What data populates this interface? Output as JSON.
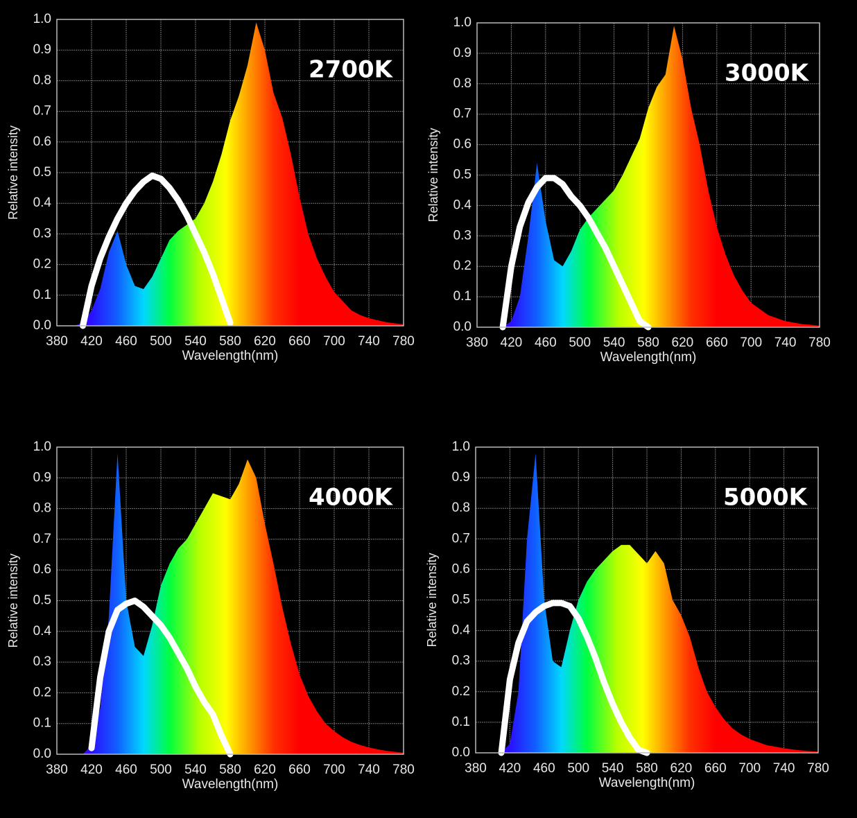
{
  "chart_data": [
    {
      "type": "area",
      "title": "2700K",
      "xlabel": "Wavelength(nm)",
      "ylabel": "Relative intensity",
      "x": [
        380,
        390,
        400,
        410,
        420,
        430,
        440,
        450,
        460,
        470,
        480,
        490,
        500,
        510,
        520,
        530,
        540,
        550,
        560,
        570,
        580,
        590,
        600,
        610,
        620,
        630,
        640,
        650,
        660,
        670,
        680,
        690,
        700,
        710,
        720,
        730,
        740,
        750,
        760,
        770,
        780
      ],
      "series": [
        {
          "fill": "spectrum",
          "values": [
            0,
            0,
            0,
            0.01,
            0.05,
            0.12,
            0.24,
            0.31,
            0.2,
            0.13,
            0.12,
            0.16,
            0.22,
            0.28,
            0.31,
            0.33,
            0.35,
            0.4,
            0.47,
            0.56,
            0.67,
            0.75,
            0.85,
            0.99,
            0.9,
            0.76,
            0.68,
            0.56,
            0.42,
            0.3,
            0.22,
            0.16,
            0.11,
            0.08,
            0.05,
            0.035,
            0.025,
            0.018,
            0.012,
            0.008,
            0.005
          ]
        },
        {
          "color": "#ffffff",
          "values": [
            null,
            null,
            null,
            0,
            0.13,
            0.22,
            0.29,
            0.35,
            0.4,
            0.44,
            0.47,
            0.49,
            0.48,
            0.45,
            0.41,
            0.36,
            0.3,
            0.24,
            0.17,
            0.09,
            0.01,
            null,
            null,
            null,
            null,
            null,
            null,
            null,
            null,
            null,
            null,
            null,
            null,
            null,
            null,
            null,
            null,
            null,
            null,
            null,
            null
          ]
        }
      ],
      "xlim": [
        380,
        780
      ],
      "xticks": [
        380,
        420,
        460,
        500,
        540,
        580,
        620,
        660,
        700,
        740,
        780
      ],
      "ylim": [
        0,
        1
      ],
      "yticks": [
        {
          "value": 0,
          "label": "0.0"
        },
        0.1,
        0.2,
        0.3,
        0.4,
        0.5,
        0.6,
        0.7,
        0.8,
        0.9,
        {
          "value": 1,
          "label": "1.0"
        }
      ],
      "grid": true
    },
    {
      "type": "area",
      "title": "3000K",
      "xlabel": "Wavelength(nm)",
      "ylabel": "Relative intensity",
      "x": [
        380,
        390,
        400,
        410,
        420,
        430,
        440,
        450,
        460,
        470,
        480,
        490,
        500,
        510,
        520,
        530,
        540,
        550,
        560,
        570,
        580,
        590,
        600,
        610,
        620,
        630,
        640,
        650,
        660,
        670,
        680,
        690,
        700,
        710,
        720,
        730,
        740,
        750,
        760,
        770,
        780
      ],
      "series": [
        {
          "fill": "spectrum",
          "values": [
            0,
            0,
            0,
            0,
            0.02,
            0.1,
            0.3,
            0.54,
            0.35,
            0.22,
            0.2,
            0.25,
            0.32,
            0.36,
            0.39,
            0.42,
            0.45,
            0.5,
            0.56,
            0.62,
            0.72,
            0.79,
            0.83,
            0.99,
            0.88,
            0.72,
            0.6,
            0.45,
            0.33,
            0.24,
            0.17,
            0.12,
            0.08,
            0.06,
            0.04,
            0.03,
            0.02,
            0.015,
            0.01,
            0.008,
            0.005
          ]
        },
        {
          "color": "#ffffff",
          "values": [
            null,
            null,
            null,
            0,
            0.2,
            0.33,
            0.41,
            0.46,
            0.49,
            0.49,
            0.47,
            0.43,
            0.4,
            0.36,
            0.31,
            0.26,
            0.2,
            0.14,
            0.08,
            0.02,
            0,
            null,
            null,
            null,
            null,
            null,
            null,
            null,
            null,
            null,
            null,
            null,
            null,
            null,
            null,
            null,
            null,
            null,
            null,
            null,
            null
          ]
        }
      ],
      "xlim": [
        380,
        780
      ],
      "xticks": [
        380,
        420,
        460,
        500,
        540,
        580,
        620,
        660,
        700,
        740,
        780
      ],
      "ylim": [
        0,
        1
      ],
      "yticks": [
        {
          "value": 0,
          "label": "0.0"
        },
        0.1,
        0.2,
        0.3,
        0.4,
        0.5,
        0.6,
        0.7,
        0.8,
        0.9,
        {
          "value": 1,
          "label": "1.0"
        }
      ],
      "grid": true
    },
    {
      "type": "area",
      "title": "4000K",
      "xlabel": "Wavelength(nm)",
      "ylabel": "Relative intensity",
      "x": [
        380,
        390,
        400,
        410,
        420,
        430,
        440,
        450,
        460,
        470,
        480,
        490,
        500,
        510,
        520,
        530,
        540,
        550,
        560,
        570,
        580,
        590,
        600,
        610,
        620,
        630,
        640,
        650,
        660,
        670,
        680,
        690,
        700,
        710,
        720,
        730,
        740,
        750,
        760,
        770,
        780
      ],
      "series": [
        {
          "fill": "spectrum",
          "values": [
            0,
            0,
            0,
            0,
            0.03,
            0.15,
            0.45,
            0.98,
            0.5,
            0.35,
            0.32,
            0.42,
            0.55,
            0.62,
            0.67,
            0.7,
            0.75,
            0.8,
            0.85,
            0.84,
            0.83,
            0.88,
            0.96,
            0.9,
            0.75,
            0.62,
            0.48,
            0.36,
            0.26,
            0.19,
            0.14,
            0.1,
            0.075,
            0.055,
            0.04,
            0.03,
            0.022,
            0.016,
            0.011,
            0.008,
            0.005
          ]
        },
        {
          "color": "#ffffff",
          "values": [
            null,
            null,
            null,
            null,
            0.02,
            0.25,
            0.4,
            0.47,
            0.49,
            0.5,
            0.48,
            0.45,
            0.42,
            0.38,
            0.33,
            0.28,
            0.22,
            0.17,
            0.13,
            0.06,
            0,
            null,
            null,
            null,
            null,
            null,
            null,
            null,
            null,
            null,
            null,
            null,
            null,
            null,
            null,
            null,
            null,
            null,
            null,
            null,
            null
          ]
        }
      ],
      "xlim": [
        380,
        780
      ],
      "xticks": [
        380,
        420,
        460,
        500,
        540,
        580,
        620,
        660,
        700,
        740,
        780
      ],
      "ylim": [
        0,
        1
      ],
      "yticks": [
        {
          "value": 0,
          "label": "0.0"
        },
        0.1,
        0.2,
        0.3,
        0.4,
        0.5,
        0.6,
        0.7,
        0.8,
        0.9,
        {
          "value": 1,
          "label": "1.0"
        }
      ],
      "grid": true
    },
    {
      "type": "area",
      "title": "5000K",
      "xlabel": "Wavelength(nm)",
      "ylabel": "Relative intensity",
      "x": [
        380,
        390,
        400,
        410,
        420,
        430,
        440,
        450,
        460,
        470,
        480,
        490,
        500,
        510,
        520,
        530,
        540,
        550,
        560,
        570,
        580,
        590,
        600,
        610,
        620,
        630,
        640,
        650,
        660,
        670,
        680,
        690,
        700,
        710,
        720,
        730,
        740,
        750,
        760,
        770,
        780
      ],
      "series": [
        {
          "fill": "spectrum",
          "values": [
            0,
            0,
            0,
            0,
            0.03,
            0.2,
            0.7,
            0.98,
            0.5,
            0.3,
            0.28,
            0.4,
            0.5,
            0.56,
            0.6,
            0.63,
            0.66,
            0.68,
            0.68,
            0.65,
            0.62,
            0.66,
            0.62,
            0.5,
            0.45,
            0.38,
            0.28,
            0.2,
            0.15,
            0.11,
            0.08,
            0.06,
            0.045,
            0.035,
            0.025,
            0.02,
            0.015,
            0.011,
            0.008,
            0.006,
            0.004
          ]
        },
        {
          "color": "#ffffff",
          "values": [
            null,
            null,
            null,
            0,
            0.24,
            0.36,
            0.43,
            0.46,
            0.48,
            0.49,
            0.49,
            0.48,
            0.44,
            0.38,
            0.31,
            0.23,
            0.16,
            0.1,
            0.05,
            0.01,
            0,
            null,
            null,
            null,
            null,
            null,
            null,
            null,
            null,
            null,
            null,
            null,
            null,
            null,
            null,
            null,
            null,
            null,
            null,
            null,
            null
          ]
        }
      ],
      "xlim": [
        380,
        780
      ],
      "xticks": [
        380,
        420,
        460,
        500,
        540,
        580,
        620,
        660,
        700,
        740,
        780
      ],
      "ylim": [
        0,
        1
      ],
      "yticks": [
        {
          "value": 0,
          "label": "0.0"
        },
        0.1,
        0.2,
        0.3,
        0.4,
        0.5,
        0.6,
        0.7,
        0.8,
        0.9,
        {
          "value": 1,
          "label": "1.0"
        }
      ],
      "grid": true
    }
  ]
}
